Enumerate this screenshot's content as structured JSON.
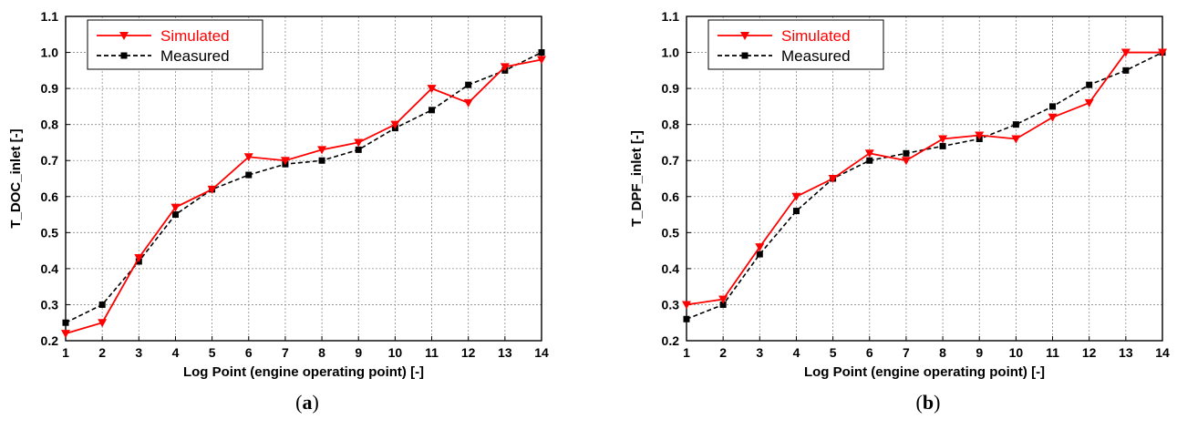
{
  "chart_data": [
    {
      "type": "line",
      "caption": "a",
      "xlabel": "Log Point (engine operating point) [-]",
      "ylabel": "T_DOC_inlet [-]",
      "xlim": [
        1,
        14
      ],
      "ylim": [
        0.2,
        1.1
      ],
      "x_ticks": [
        "1",
        "2",
        "3",
        "4",
        "5",
        "6",
        "7",
        "8",
        "9",
        "10",
        "11",
        "12",
        "13",
        "14"
      ],
      "y_ticks": [
        "0.2",
        "0.3",
        "0.4",
        "0.5",
        "0.6",
        "0.7",
        "0.8",
        "0.9",
        "1.0",
        "1.1"
      ],
      "grid": true,
      "legend_position": "top-left",
      "x": [
        1,
        2,
        3,
        4,
        5,
        6,
        7,
        8,
        9,
        10,
        11,
        12,
        13,
        14
      ],
      "series": [
        {
          "name": "Simulated",
          "color": "#ff0000",
          "marker": "triangle-down",
          "line": "solid",
          "values": [
            0.22,
            0.25,
            0.43,
            0.57,
            0.62,
            0.71,
            0.7,
            0.73,
            0.75,
            0.8,
            0.9,
            0.86,
            0.96,
            0.98
          ]
        },
        {
          "name": "Measured",
          "color": "#000000",
          "marker": "square",
          "line": "dashed",
          "values": [
            0.25,
            0.3,
            0.42,
            0.55,
            0.62,
            0.66,
            0.69,
            0.7,
            0.73,
            0.79,
            0.84,
            0.91,
            0.95,
            1.0
          ]
        }
      ]
    },
    {
      "type": "line",
      "caption": "b",
      "xlabel": "Log Point (engine operating point) [-]",
      "ylabel": "T_DPF_inlet [-]",
      "xlim": [
        1,
        14
      ],
      "ylim": [
        0.2,
        1.1
      ],
      "x_ticks": [
        "1",
        "2",
        "3",
        "4",
        "5",
        "6",
        "7",
        "8",
        "9",
        "10",
        "11",
        "12",
        "13",
        "14"
      ],
      "y_ticks": [
        "0.2",
        "0.3",
        "0.4",
        "0.5",
        "0.6",
        "0.7",
        "0.8",
        "0.9",
        "1.0",
        "1.1"
      ],
      "grid": true,
      "legend_position": "top-left",
      "x": [
        1,
        2,
        3,
        4,
        5,
        6,
        7,
        8,
        9,
        10,
        11,
        12,
        13,
        14
      ],
      "series": [
        {
          "name": "Simulated",
          "color": "#ff0000",
          "marker": "triangle-down",
          "line": "solid",
          "values": [
            0.3,
            0.315,
            0.46,
            0.6,
            0.65,
            0.72,
            0.7,
            0.76,
            0.77,
            0.76,
            0.82,
            0.86,
            1.0,
            1.0
          ]
        },
        {
          "name": "Measured",
          "color": "#000000",
          "marker": "square",
          "line": "dashed",
          "values": [
            0.26,
            0.3,
            0.44,
            0.56,
            0.65,
            0.7,
            0.72,
            0.74,
            0.76,
            0.8,
            0.85,
            0.91,
            0.95,
            1.0
          ]
        }
      ]
    }
  ]
}
